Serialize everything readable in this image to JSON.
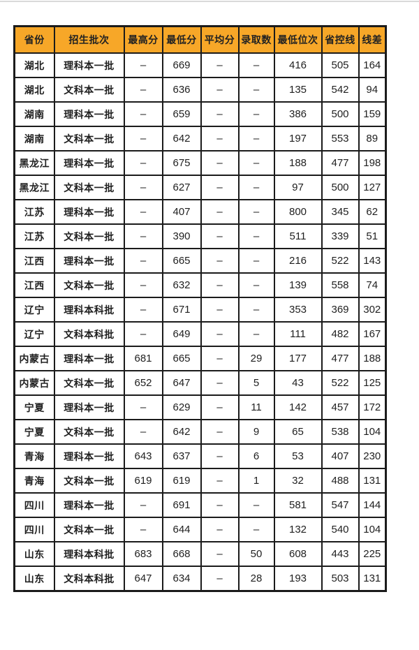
{
  "chart_data": {
    "type": "table",
    "columns": [
      "省份",
      "招生批次",
      "最高分",
      "最低分",
      "平均分",
      "录取数",
      "最低位次",
      "省控线",
      "线差"
    ],
    "rows": [
      [
        "湖北",
        "理科本一批",
        "–",
        "669",
        "–",
        "–",
        "416",
        "505",
        "164"
      ],
      [
        "湖北",
        "文科本一批",
        "–",
        "636",
        "–",
        "–",
        "135",
        "542",
        "94"
      ],
      [
        "湖南",
        "理科本一批",
        "–",
        "659",
        "–",
        "–",
        "386",
        "500",
        "159"
      ],
      [
        "湖南",
        "文科本一批",
        "–",
        "642",
        "–",
        "–",
        "197",
        "553",
        "89"
      ],
      [
        "黑龙江",
        "理科本一批",
        "–",
        "675",
        "–",
        "–",
        "188",
        "477",
        "198"
      ],
      [
        "黑龙江",
        "文科本一批",
        "–",
        "627",
        "–",
        "–",
        "97",
        "500",
        "127"
      ],
      [
        "江苏",
        "理科本一批",
        "–",
        "407",
        "–",
        "–",
        "800",
        "345",
        "62"
      ],
      [
        "江苏",
        "文科本一批",
        "–",
        "390",
        "–",
        "–",
        "511",
        "339",
        "51"
      ],
      [
        "江西",
        "理科本一批",
        "–",
        "665",
        "–",
        "–",
        "216",
        "522",
        "143"
      ],
      [
        "江西",
        "文科本一批",
        "–",
        "632",
        "–",
        "–",
        "139",
        "558",
        "74"
      ],
      [
        "辽宁",
        "理科本科批",
        "–",
        "671",
        "–",
        "–",
        "353",
        "369",
        "302"
      ],
      [
        "辽宁",
        "文科本科批",
        "–",
        "649",
        "–",
        "–",
        "111",
        "482",
        "167"
      ],
      [
        "内蒙古",
        "理科本一批",
        "681",
        "665",
        "–",
        "29",
        "177",
        "477",
        "188"
      ],
      [
        "内蒙古",
        "文科本一批",
        "652",
        "647",
        "–",
        "5",
        "43",
        "522",
        "125"
      ],
      [
        "宁夏",
        "理科本一批",
        "–",
        "629",
        "–",
        "11",
        "142",
        "457",
        "172"
      ],
      [
        "宁夏",
        "文科本一批",
        "–",
        "642",
        "–",
        "9",
        "65",
        "538",
        "104"
      ],
      [
        "青海",
        "理科本一批",
        "643",
        "637",
        "–",
        "6",
        "53",
        "407",
        "230"
      ],
      [
        "青海",
        "文科本一批",
        "619",
        "619",
        "–",
        "1",
        "32",
        "488",
        "131"
      ],
      [
        "四川",
        "理科本一批",
        "–",
        "691",
        "–",
        "–",
        "581",
        "547",
        "144"
      ],
      [
        "四川",
        "文科本一批",
        "–",
        "644",
        "–",
        "–",
        "132",
        "540",
        "104"
      ],
      [
        "山东",
        "理科本科批",
        "683",
        "668",
        "–",
        "50",
        "608",
        "443",
        "225"
      ],
      [
        "山东",
        "文科本科批",
        "647",
        "634",
        "–",
        "28",
        "193",
        "503",
        "131"
      ]
    ],
    "layout": {
      "header_position": "top",
      "grid": true
    }
  },
  "colors": {
    "header_bg": "#F7A728",
    "border": "#1b1b1b",
    "text": "#1f1f1f",
    "row_bg": "#ffffff"
  }
}
